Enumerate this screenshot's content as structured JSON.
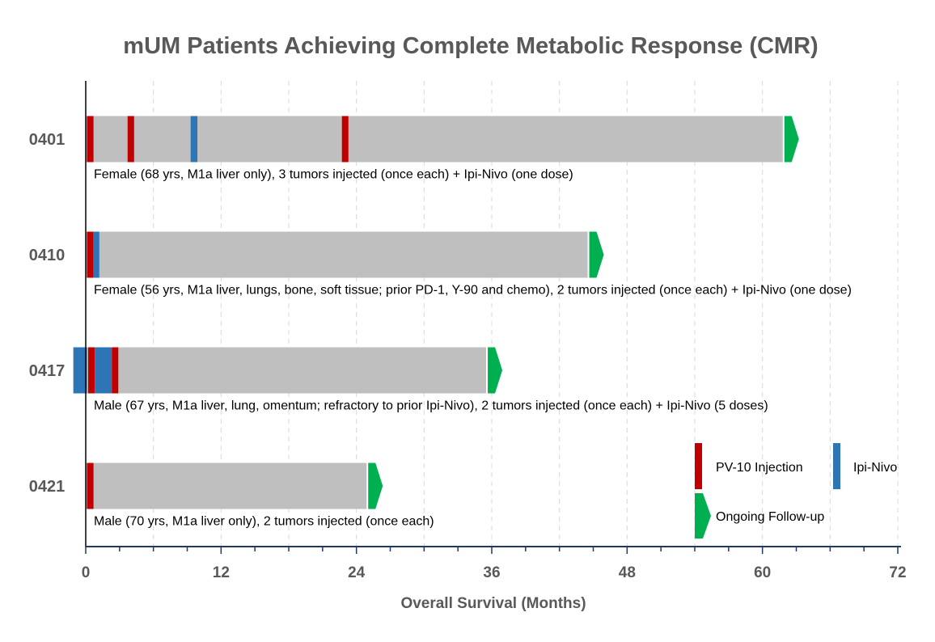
{
  "chart_data": {
    "type": "bar",
    "orientation": "horizontal",
    "title": "mUM Patients Achieving Complete Metabolic Response (CMR)",
    "xlabel": "Overall Survival (Months)",
    "xlim": [
      0,
      72
    ],
    "xticks": [
      "0",
      "12",
      "24",
      "36",
      "48",
      "60",
      "72"
    ],
    "grid": "vertical dashed",
    "legend_position": "bottom-right",
    "legend": {
      "pv10": "PV-10 Injection",
      "ipi": "Ipi-Nivo",
      "followup": "Ongoing Follow-up"
    },
    "colors": {
      "bar": "#bfbfbf",
      "pv10": "#c00000",
      "ipi": "#2e75b6",
      "followup": "#00b050",
      "text": "#595959"
    },
    "patients": [
      {
        "id": "0401",
        "survival": 61.8,
        "description": "Female (68 yrs, M1a liver only), 3 tumors injected (once each) + Ipi-Nivo (one dose)",
        "pv10": [
          0.4,
          4.0,
          23.0
        ],
        "ipi": [
          [
            9.3,
            9.9
          ]
        ]
      },
      {
        "id": "0410",
        "survival": 44.5,
        "description": "Female (56 yrs, M1a liver, lungs, bone, soft tissue; prior PD-1, Y-90 and chemo), 2 tumors injected (once each) +  Ipi-Nivo (one dose)",
        "pv10": [
          0.4
        ],
        "ipi": [
          [
            0.7,
            1.2
          ]
        ]
      },
      {
        "id": "0417",
        "survival": 35.5,
        "description": "Male (67 yrs, M1a liver, lung, omentum; refractory to prior Ipi-Nivo), 2 tumors injected (once each) +  Ipi-Nivo (5 doses)",
        "pv10": [
          0.5,
          2.6
        ],
        "ipi": [
          [
            -1.1,
            0.1
          ],
          [
            0.8,
            2.3
          ]
        ]
      },
      {
        "id": "0421",
        "survival": 24.9,
        "description": "Male (70 yrs, M1a liver only), 2 tumors injected (once each)",
        "pv10": [
          0.4
        ],
        "ipi": []
      }
    ]
  }
}
